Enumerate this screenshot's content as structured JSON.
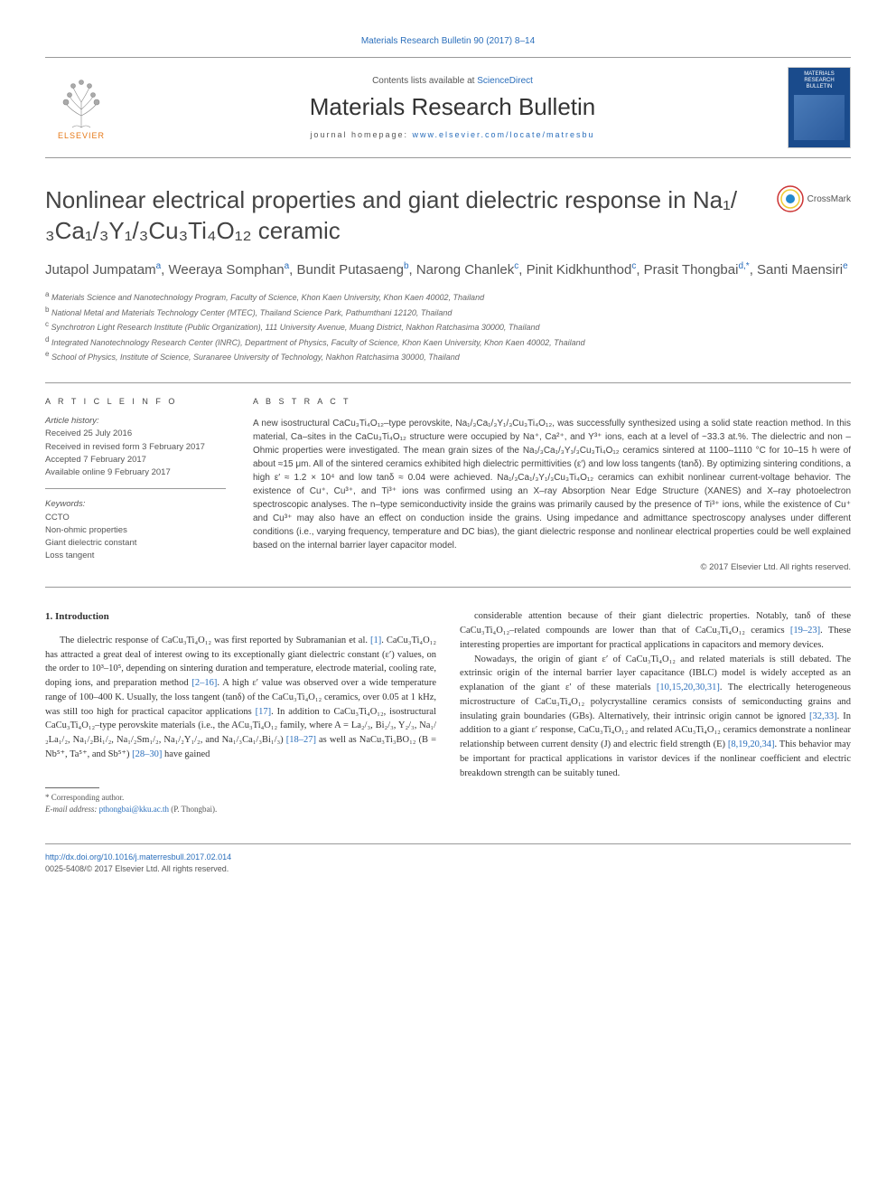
{
  "header": {
    "citation": "Materials Research Bulletin 90 (2017) 8–14",
    "contents_prefix": "Contents lists available at ",
    "contents_link": "ScienceDirect",
    "journal_name": "Materials Research Bulletin",
    "homepage_prefix": "journal homepage: ",
    "homepage_url": "www.elsevier.com/locate/matresbu",
    "elsevier_label": "ELSEVIER",
    "cover_title": "MATERIALS RESEARCH BULLETIN"
  },
  "crossmark_label": "CrossMark",
  "title": "Nonlinear electrical properties and giant dielectric response in Na₁/₃Ca₁/₃Y₁/₃Cu₃Ti₄O₁₂ ceramic",
  "authors_html": "Jutapol Jumpatam<sup>a</sup>, Weeraya Somphan<sup>a</sup>, Bundit Putasaeng<sup>b</sup>, Narong Chanlek<sup>c</sup>, Pinit Kidkhunthod<sup>c</sup>, Prasit Thongbai<sup>d,*</sup>, Santi Maensiri<sup>e</sup>",
  "affiliations": {
    "a": "Materials Science and Nanotechnology Program, Faculty of Science, Khon Kaen University, Khon Kaen 40002, Thailand",
    "b": "National Metal and Materials Technology Center (MTEC), Thailand Science Park, Pathumthani 12120, Thailand",
    "c": "Synchrotron Light Research Institute (Public Organization), 111 University Avenue, Muang District, Nakhon Ratchasima 30000, Thailand",
    "d": "Integrated Nanotechnology Research Center (INRC), Department of Physics, Faculty of Science, Khon Kaen University, Khon Kaen 40002, Thailand",
    "e": "School of Physics, Institute of Science, Suranaree University of Technology, Nakhon Ratchasima 30000, Thailand"
  },
  "article_info": {
    "heading": "A R T I C L E  I N F O",
    "history_label": "Article history:",
    "received": "Received 25 July 2016",
    "revised": "Received in revised form 3 February 2017",
    "accepted": "Accepted 7 February 2017",
    "online": "Available online 9 February 2017",
    "keywords_label": "Keywords:",
    "keywords": [
      "CCTO",
      "Non-ohmic properties",
      "Giant dielectric constant",
      "Loss tangent"
    ]
  },
  "abstract": {
    "heading": "A B S T R A C T",
    "text": "A new isostructural CaCu₃Ti₄O₁₂–type perovskite, Na₁/₃Ca₁/₃Y₁/₃Cu₃Ti₄O₁₂, was successfully synthesized using a solid state reaction method. In this material, Ca–sites in the CaCu₃Ti₄O₁₂ structure were occupied by Na⁺, Ca²⁺, and Y³⁺ ions, each at a level of ~33.3 at.%. The dielectric and non –Ohmic properties were investigated. The mean grain sizes of the Na₁/₃Ca₁/₃Y₁/₃Cu₃Ti₄O₁₂ ceramics sintered at 1100–1110 °C for 10–15 h were of about ≈15 μm. All of the sintered ceramics exhibited high dielectric permittivities (ε′) and low loss tangents (tanδ). By optimizing sintering conditions, a high ε′ ≈ 1.2 × 10⁴ and low tanδ ≈ 0.04 were achieved. Na₁/₃Ca₁/₃Y₁/₃Cu₃Ti₄O₁₂ ceramics can exhibit nonlinear current-voltage behavior. The existence of Cu⁺, Cu³⁺, and Ti³⁺ ions was confirmed using an X–ray Absorption Near Edge Structure (XANES) and X–ray photoelectron spectroscopic analyses. The n–type semiconductivity inside the grains was primarily caused by the presence of Ti³⁺ ions, while the existence of Cu⁺ and Cu³⁺ may also have an effect on conduction inside the grains. Using impedance and admittance spectroscopy analyses under different conditions (i.e., varying frequency, temperature and DC bias), the giant dielectric response and nonlinear electrical properties could be well explained based on the internal barrier layer capacitor model.",
    "copyright": "© 2017 Elsevier Ltd. All rights reserved."
  },
  "section1": {
    "heading": "1. Introduction",
    "col1_p1": "The dielectric response of CaCu₃Ti₄O₁₂ was first reported by Subramanian et al. [1]. CaCu₃Ti₄O₁₂ has attracted a great deal of interest owing to its exceptionally giant dielectric constant (ε′) values, on the order to 10³–10⁵, depending on sintering duration and temperature, electrode material, cooling rate, doping ions, and preparation method [2–16]. A high ε′ value was observed over a wide temperature range of 100–400 K. Usually, the loss tangent (tanδ) of the CaCu₃Ti₄O₁₂ ceramics, over 0.05 at 1 kHz, was still too high for practical capacitor applications [17]. In addition to CaCu₃Ti₄O₁₂, isostructural CaCu₃Ti₄O₁₂–type perovskite materials (i.e., the ACu₃Ti₄O₁₂ family, where A = La₂/₃, Bi₂/₃, Y₂/₃, Na₁/₂La₁/₂, Na₁/₂Bi₁/₂, Na₁/₂Sm₁/₂, Na₁/₂Y₁/₂, and Na₁/₃Ca₁/₃Bi₁/₃) [18–27] as well as NaCu₃Ti₃BO₁₂ (B = Nb⁵⁺, Ta⁵⁺, and Sb⁵⁺) [28–30] have gained",
    "col2_p1": "considerable attention because of their giant dielectric properties. Notably, tanδ of these CaCu₃Ti₄O₁₂–related compounds are lower than that of CaCu₃Ti₄O₁₂ ceramics [19–23]. These interesting properties are important for practical applications in capacitors and memory devices.",
    "col2_p2": "Nowadays, the origin of giant ε′ of CaCu₃Ti₄O₁₂ and related materials is still debated. The extrinsic origin of the internal barrier layer capacitance (IBLC) model is widely accepted as an explanation of the giant ε′ of these materials [10,15,20,30,31]. The electrically heterogeneous microstructure of CaCu₃Ti₄O₁₂ polycrystalline ceramics consists of semiconducting grains and insulating grain boundaries (GBs). Alternatively, their intrinsic origin cannot be ignored [32,33]. In addition to a giant ε′ response, CaCu₃Ti₄O₁₂ and related ACu₃Ti₄O₁₂ ceramics demonstrate a nonlinear relationship between current density (J) and electric field strength (E) [8,19,20,34]. This behavior may be important for practical applications in varistor devices if the nonlinear coefficient and electric breakdown strength can be suitably tuned."
  },
  "corresponding": {
    "label": "* Corresponding author.",
    "email_label": "E-mail address: ",
    "email": "pthongbai@kku.ac.th",
    "email_suffix": " (P. Thongbai)."
  },
  "footer": {
    "doi": "http://dx.doi.org/10.1016/j.materresbull.2017.02.014",
    "issn_copyright": "0025-5408/© 2017 Elsevier Ltd. All rights reserved."
  },
  "colors": {
    "link": "#2a6ebb",
    "elsevier_orange": "#e67817",
    "cover_blue": "#1a4b8c",
    "text": "#333333",
    "muted": "#555555",
    "border": "#999999"
  }
}
